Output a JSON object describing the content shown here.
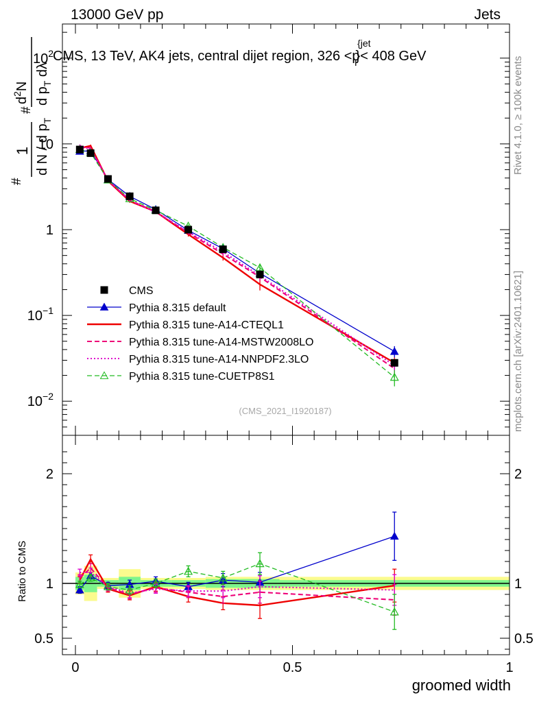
{
  "header": {
    "left": "13000 GeV pp",
    "right": "Jets"
  },
  "side_text": {
    "rivet": "Rivet 4.1.0, ≥ 100k events",
    "mcplots": "mcplots.cern.ch [arXiv:2401.10621]"
  },
  "colors": {
    "data": "#000000",
    "band_inner": "#7ef58c",
    "band_outer": "#fbfb8e",
    "axis": "#000000"
  },
  "chart_data": {
    "type": "line",
    "title": "CMS, 13 TeV, AK4 jets, central dijet region, 326 <p_T^{jet}< 408 GeV",
    "title_parts": {
      "pre": "CMS, 13 TeV, AK4 jets, central dijet region, 326 <",
      "p": "p",
      "sub": "T",
      "sup": "{jet",
      "post": "}< 408 GeV"
    },
    "analysis_id": "(CMS_2021_I1920187)",
    "xlabel": "groomed width",
    "ylabel_top": {
      "num_left": "1",
      "den_left": "d N / d p",
      "den_left_sub": "T",
      "hash1": "#",
      "num_right": "d",
      "num_right_sup": "2",
      "num_right_tail": "N",
      "den_right": "d p",
      "den_right_sub": "T",
      "den_right_tail": " dλ",
      "hash2": "#"
    },
    "ylabel_bottom": "Ratio to CMS",
    "xlim": [
      -0.03,
      1.0
    ],
    "top_yscale": "log",
    "top_ylim": [
      0.004,
      250
    ],
    "top_yticks": [
      {
        "value": 0.01,
        "base": "10",
        "exp": "−2"
      },
      {
        "value": 0.1,
        "base": "10",
        "exp": "−1"
      },
      {
        "value": 1,
        "base": "1",
        "exp": ""
      },
      {
        "value": 10,
        "base": "10",
        "exp": ""
      },
      {
        "value": 100,
        "base": "10",
        "exp": "2"
      }
    ],
    "ratio_ylim": [
      0.35,
      2.35
    ],
    "ratio_yticks": [
      {
        "value": 0.5,
        "label": "0.5"
      },
      {
        "value": 1,
        "label": "1"
      },
      {
        "value": 2,
        "label": "2"
      }
    ],
    "xticks": [
      {
        "value": 0,
        "label": "0"
      },
      {
        "value": 0.5,
        "label": "0.5"
      },
      {
        "value": 1,
        "label": "1"
      }
    ],
    "bins": [
      [
        0.0,
        0.02
      ],
      [
        0.02,
        0.05
      ],
      [
        0.05,
        0.1
      ],
      [
        0.1,
        0.15
      ],
      [
        0.15,
        0.22
      ],
      [
        0.22,
        0.3
      ],
      [
        0.3,
        0.38
      ],
      [
        0.38,
        0.47
      ],
      [
        0.47,
        1.0
      ]
    ],
    "x": [
      0.01,
      0.035,
      0.075,
      0.125,
      0.185,
      0.26,
      0.34,
      0.425,
      0.735
    ],
    "cms": {
      "name": "CMS",
      "values": [
        8.6,
        7.8,
        3.9,
        2.45,
        1.68,
        1.0,
        0.59,
        0.3,
        0.028
      ],
      "band_inner": [
        0.06,
        0.08,
        0.03,
        0.06,
        0.03,
        0.03,
        0.04,
        0.04,
        0.03
      ],
      "band_outer": [
        0.1,
        0.16,
        0.05,
        0.13,
        0.05,
        0.05,
        0.06,
        0.06,
        0.06
      ]
    },
    "series": [
      {
        "name": "Pythia 8.315 default",
        "color": "#0000cc",
        "style": "solid",
        "width": 1.3,
        "marker": "triangle-filled",
        "values": [
          8.2,
          8.3,
          3.85,
          2.45,
          1.72,
          0.98,
          0.6,
          0.31,
          0.038
        ],
        "ratio": [
          0.94,
          1.07,
          0.98,
          0.99,
          1.02,
          0.97,
          1.03,
          1.01,
          1.43
        ],
        "ratio_err": [
          0.03,
          0.03,
          0.03,
          0.04,
          0.04,
          0.04,
          0.06,
          0.09,
          0.22
        ]
      },
      {
        "name": "Pythia 8.315 tune-A14-CTEQL1",
        "color": "#ee0000",
        "style": "solid",
        "width": 2.4,
        "marker": "none",
        "values": [
          8.9,
          9.5,
          3.7,
          2.15,
          1.62,
          0.88,
          0.47,
          0.23,
          0.028
        ],
        "ratio": [
          1.03,
          1.22,
          0.95,
          0.89,
          0.97,
          0.88,
          0.82,
          0.8,
          0.98
        ],
        "ratio_err": [
          0.03,
          0.04,
          0.03,
          0.04,
          0.04,
          0.05,
          0.06,
          0.12,
          0.15
        ]
      },
      {
        "name": "Pythia 8.315 tune-A14-MSTW2008LO",
        "color": "#ee0077",
        "style": "dashed",
        "width": 2.1,
        "marker": "none",
        "values": [
          9.1,
          9.0,
          3.75,
          2.2,
          1.62,
          0.92,
          0.52,
          0.28,
          0.024
        ],
        "ratio": [
          1.05,
          1.14,
          0.96,
          0.9,
          0.96,
          0.92,
          0.88,
          0.92,
          0.85
        ],
        "ratio_err": [
          0.03,
          0.04,
          0.03,
          0.04,
          0.04,
          0.05,
          0.06,
          0.1,
          0.14
        ]
      },
      {
        "name": "Pythia 8.315 tune-A14-NNPDF2.3LO",
        "color": "#dd00cc",
        "style": "dotted",
        "width": 2.1,
        "marker": "none",
        "values": [
          9.6,
          8.6,
          3.8,
          2.2,
          1.6,
          0.94,
          0.55,
          0.29,
          0.026
        ],
        "ratio": [
          1.1,
          1.1,
          0.97,
          0.91,
          0.95,
          0.93,
          0.93,
          0.97,
          0.94
        ],
        "ratio_err": [
          0.03,
          0.04,
          0.03,
          0.04,
          0.04,
          0.05,
          0.06,
          0.1,
          0.14
        ]
      },
      {
        "name": "Pythia 8.315 tune-CUETP8S1",
        "color": "#22bb22",
        "style": "dashed",
        "width": 1.3,
        "marker": "triangle-open",
        "values": [
          8.6,
          7.9,
          3.8,
          2.3,
          1.68,
          1.1,
          0.62,
          0.36,
          0.019
        ],
        "ratio": [
          0.99,
          1.05,
          0.97,
          0.94,
          1.0,
          1.11,
          1.05,
          1.18,
          0.74
        ],
        "ratio_err": [
          0.03,
          0.03,
          0.03,
          0.04,
          0.04,
          0.05,
          0.06,
          0.1,
          0.16
        ]
      }
    ]
  }
}
